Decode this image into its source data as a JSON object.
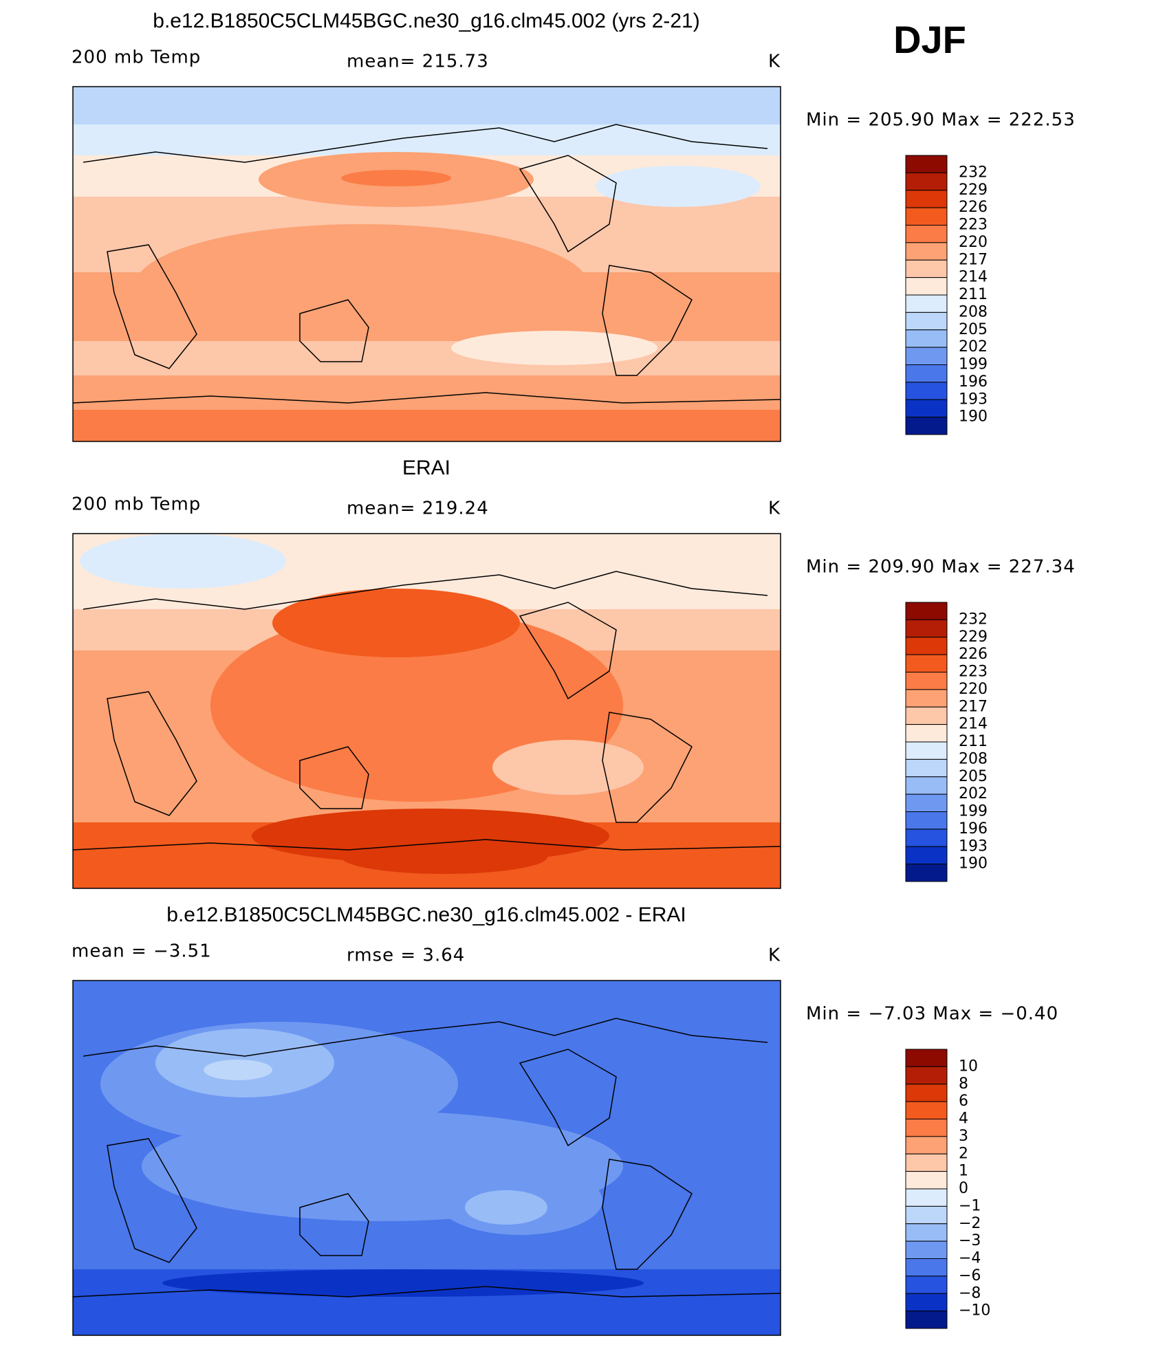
{
  "season": "DJF",
  "panels": [
    {
      "title": "b.e12.B1850C5CLM45BGC.ne30_g16.clm45.002 (yrs 2-21)",
      "left": "200 mb Temp",
      "center": "mean= 215.73",
      "units": "K",
      "min_max": "Min = 205.90 Max = 222.53",
      "levels": [
        232,
        229,
        226,
        223,
        220,
        217,
        214,
        211,
        208,
        205,
        202,
        199,
        196,
        193,
        190
      ]
    },
    {
      "title": "ERAI",
      "left": "200 mb Temp",
      "center": "mean= 219.24",
      "units": "K",
      "min_max": "Min = 209.90 Max = 227.34",
      "levels": [
        232,
        229,
        226,
        223,
        220,
        217,
        214,
        211,
        208,
        205,
        202,
        199,
        196,
        193,
        190
      ]
    },
    {
      "title": "b.e12.B1850C5CLM45BGC.ne30_g16.clm45.002 - ERAI",
      "left": "mean =   −3.51",
      "center": "rmse =    3.64",
      "units": "K",
      "min_max": "Min =   −7.03 Max =   −0.40",
      "levels": [
        10,
        8,
        6,
        4,
        3,
        2,
        1,
        0,
        {
          "value": -1,
          "label": "−1"
        },
        {
          "value": -2,
          "label": "−2"
        },
        {
          "value": -3,
          "label": "−3"
        },
        {
          "value": -4,
          "label": "−4"
        },
        {
          "value": -6,
          "label": "−6"
        },
        {
          "value": -8,
          "label": "−8"
        },
        {
          "value": -10,
          "label": "−10"
        }
      ]
    }
  ]
}
